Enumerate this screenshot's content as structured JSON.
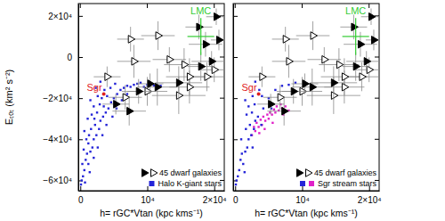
{
  "chart_data": [
    {
      "type": "scatter",
      "xlabel": "h= rGC*Vtan (kpc kms⁻¹)",
      "ylabel": "Eₜₒₜ (km² s⁻²)",
      "xlim": [
        -300,
        21500
      ],
      "ylim": [
        -65000,
        26000
      ],
      "xticks": [
        0,
        {
          "value": 10000,
          "label": "10⁴"
        },
        {
          "value": 20000,
          "label": "2×10⁴"
        }
      ],
      "yticks": [
        {
          "value": -60000,
          "label": "−6×10⁴"
        },
        {
          "value": -40000,
          "label": "−4×10⁴"
        },
        {
          "value": -20000,
          "label": "−2×10⁴"
        },
        0,
        {
          "value": 20000,
          "label": "2×10⁴"
        }
      ],
      "legend": "lower right",
      "series": [
        {
          "color": "#000000",
          "marker": "triangle-right",
          "x": [
            20300,
            18700,
            19600,
            18000,
            14700,
            11500,
            8700,
            5300,
            7300,
            20700,
            17700,
            10400
          ],
          "values": [
            19600,
            6200,
            -2100,
            -4600,
            -12500,
            -14600,
            -16700,
            -22900,
            -26300,
            8300,
            14600,
            -13000
          ],
          "x_err": [
            1500,
            2500,
            3000,
            2000,
            3500,
            3000,
            2500,
            2000,
            2500,
            1200,
            2000,
            2000
          ],
          "y_err": [
            4000,
            6000,
            5000,
            7000,
            8000,
            9000,
            6000,
            5000,
            7000,
            5000,
            6000,
            5000
          ]
        },
        {
          "name": "45 dwarf galaxies",
          "color": "#000000",
          "marker": "triangle-right-open",
          "x": [
            15500,
            16300,
            13300,
            11600,
            7500,
            8000,
            14700,
            10000,
            4000,
            6700,
            20000,
            18900,
            16300
          ],
          "values": [
            -3700,
            -9600,
            -1200,
            10400,
            8700,
            -2100,
            -18700,
            -16700,
            -9600,
            -19600,
            -6200,
            -9600,
            -14600
          ],
          "x_err": [
            3000,
            3500,
            2500,
            2500,
            2000,
            2500,
            4000,
            3000,
            2000,
            2500,
            2000,
            2500,
            3000
          ],
          "y_err": [
            8000,
            9000,
            6000,
            7000,
            6000,
            8000,
            9000,
            7000,
            5000,
            6000,
            6000,
            7000,
            8000
          ]
        },
        {
          "name": "Halo K-giant stars",
          "color": "#2424d8",
          "marker": "square",
          "x": [
            200,
            400,
            600,
            300,
            800,
            1200,
            1000,
            500,
            1500,
            1800,
            900,
            1300,
            2000,
            2400,
            1600,
            2200,
            2800,
            3000,
            1100,
            1700,
            2500,
            3400,
            3800,
            2000,
            2900,
            3500,
            4200,
            4600,
            1500,
            2600,
            3200,
            4000,
            5000,
            5500,
            3600,
            4500,
            6000,
            6500,
            7000,
            5200,
            7500,
            8000,
            8500,
            9000,
            2300,
            3000,
            100,
            700,
            1400,
            2000,
            2600,
            3300,
            3900,
            4800,
            5400,
            6200,
            7000,
            1200,
            600,
            2100,
            10000,
            11000,
            12000,
            9500
          ],
          "values": [
            -60000,
            -58000,
            -55000,
            -52000,
            -50000,
            -52000,
            -47000,
            -45000,
            -46000,
            -44000,
            -40000,
            -38000,
            -40000,
            -38000,
            -35000,
            -33000,
            -35000,
            -31000,
            -30000,
            -28000,
            -27000,
            -29000,
            -27000,
            -24000,
            -23000,
            -24000,
            -25000,
            -22000,
            -21000,
            -19000,
            -20000,
            -19000,
            -20000,
            -18000,
            -16000,
            -15000,
            -16000,
            -15000,
            -14000,
            -13000,
            -14500,
            -13500,
            -13000,
            -12500,
            -15000,
            -12000,
            -62000,
            -61000,
            -56000,
            -49000,
            -44000,
            -38000,
            -33000,
            -29000,
            -25000,
            -21000,
            -18000,
            -42000,
            -36000,
            -30000,
            -13500,
            -13800,
            -14000,
            -14500
          ]
        }
      ],
      "annotations": [
        {
          "text": "LMC",
          "color": "#33cc33",
          "x": 18000,
          "y": 10000,
          "x_err": 2000,
          "y_err": 9000
        },
        {
          "text": "Sgr",
          "color": "#e02020",
          "x": 3500,
          "y": -18000
        }
      ]
    },
    {
      "type": "scatter",
      "xlabel": "h= rGC*Vtan (kpc kms⁻¹)",
      "xlim": [
        -300,
        21500
      ],
      "ylim": [
        -65000,
        26000
      ],
      "xticks": [
        0,
        {
          "value": 10000,
          "label": "10⁴"
        },
        {
          "value": 20000,
          "label": "2×10⁴"
        }
      ],
      "yticks": [
        -60000,
        -40000,
        -20000,
        0,
        20000
      ],
      "tick_labels": "x",
      "legend": "lower right",
      "series": [
        {
          "color": "#000000",
          "marker": "triangle-right",
          "x": [
            20300,
            18700,
            19600,
            18000,
            14700,
            11500,
            8700,
            5300,
            7300,
            20700,
            17700,
            10400
          ],
          "values": [
            19600,
            6200,
            -2100,
            -4600,
            -12500,
            -14600,
            -16700,
            -22900,
            -26300,
            8300,
            14600,
            -13000
          ],
          "x_err": [
            1500,
            2500,
            3000,
            2000,
            3500,
            3000,
            2500,
            2000,
            2500,
            1200,
            2000,
            2000
          ],
          "y_err": [
            4000,
            6000,
            5000,
            7000,
            8000,
            9000,
            6000,
            5000,
            7000,
            5000,
            6000,
            5000
          ]
        },
        {
          "name": "45 dwarf galaxies",
          "color": "#000000",
          "marker": "triangle-right-open",
          "x": [
            15500,
            16300,
            13300,
            11600,
            7500,
            8000,
            14700,
            10000,
            4000,
            6700,
            20000,
            18900,
            16300
          ],
          "values": [
            -3700,
            -9600,
            -1200,
            10400,
            8700,
            -2100,
            -18700,
            -16700,
            -9600,
            -19600,
            -6200,
            -9600,
            -14600
          ],
          "x_err": [
            3000,
            3500,
            2500,
            2500,
            2000,
            2500,
            4000,
            3000,
            2000,
            2500,
            2000,
            2500,
            3000
          ],
          "y_err": [
            8000,
            9000,
            6000,
            7000,
            6000,
            8000,
            9000,
            7000,
            5000,
            6000,
            6000,
            7000,
            8000
          ]
        },
        {
          "color": "#2424d8",
          "marker": "square",
          "x": [
            200,
            400,
            600,
            800,
            1200,
            1000,
            1500,
            1800,
            900,
            2000,
            2400,
            1600,
            2200,
            2800,
            3000,
            1700,
            2500,
            3400,
            2000,
            2900,
            4200,
            1500,
            2600,
            4000,
            5000,
            3600,
            6000,
            7000,
            8000,
            9000,
            3000,
            100,
            1400,
            2600,
            3900,
            5400
          ],
          "values": [
            -60000,
            -58000,
            -55000,
            -50000,
            -52000,
            -47000,
            -46000,
            -44000,
            -40000,
            -40000,
            -38000,
            -35000,
            -33000,
            -35000,
            -31000,
            -28000,
            -27000,
            -29000,
            -24000,
            -23000,
            -25000,
            -21000,
            -19000,
            -19000,
            -20000,
            -16000,
            -16000,
            -14000,
            -13500,
            -12500,
            -12000,
            -62000,
            -56000,
            -44000,
            -33000,
            -25000
          ]
        },
        {
          "name": "Sgr stream stars",
          "color": "#e020c8",
          "marker": "square",
          "x": [
            2500,
            3000,
            3500,
            4000,
            4500,
            5000,
            5500,
            6000,
            6500,
            7000,
            7500,
            3200,
            4200,
            5200,
            6200,
            2800,
            3800,
            4800,
            5800,
            6800,
            3600,
            4400,
            5600,
            7200,
            8000
          ],
          "values": [
            -38000,
            -36000,
            -34000,
            -33000,
            -31000,
            -30000,
            -28000,
            -27000,
            -26000,
            -25000,
            -24000,
            -32000,
            -29000,
            -27000,
            -24000,
            -34000,
            -30500,
            -28000,
            -25500,
            -23000,
            -37000,
            -35000,
            -32000,
            -28000,
            -26000
          ]
        }
      ],
      "annotations": [
        {
          "text": "LMC",
          "color": "#33cc33",
          "x": 18000,
          "y": 10000,
          "x_err": 2000,
          "y_err": 9000
        },
        {
          "text": "Sgr",
          "color": "#e02020",
          "x": 3500,
          "y": -18000
        }
      ]
    }
  ]
}
